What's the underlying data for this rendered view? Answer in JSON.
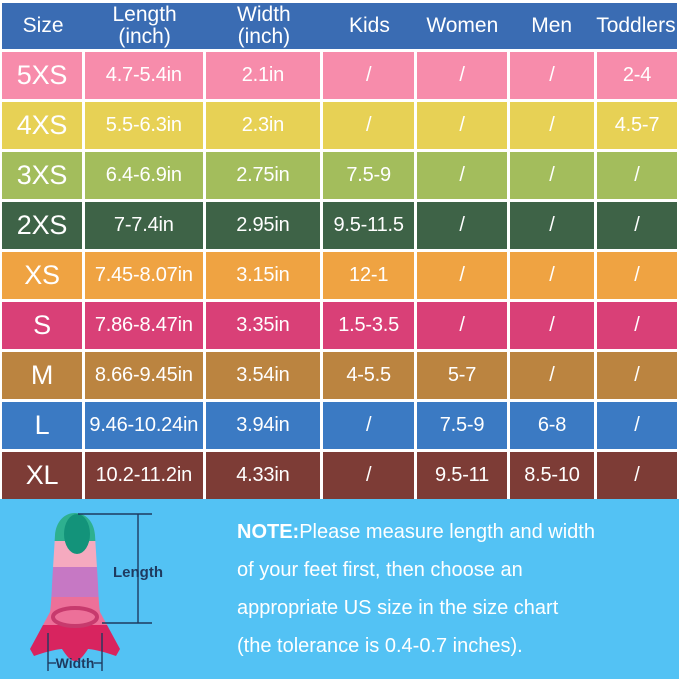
{
  "table": {
    "column_keys": [
      "size",
      "length",
      "width",
      "kids",
      "women",
      "men",
      "toddlers"
    ],
    "headers": [
      {
        "line1": "Size",
        "line2": ""
      },
      {
        "line1": "Length",
        "line2": "(inch)"
      },
      {
        "line1": "Width",
        "line2": "(inch)"
      },
      {
        "line1": "Kids",
        "line2": ""
      },
      {
        "line1": "Women",
        "line2": ""
      },
      {
        "line1": "Men",
        "line2": ""
      },
      {
        "line1": "Toddlers",
        "line2": ""
      }
    ],
    "rows": [
      {
        "size": "5XS",
        "length": "4.7-5.4in",
        "width": "2.1in",
        "kids": "/",
        "women": "/",
        "men": "/",
        "toddlers": "2-4",
        "color": "#f78cab"
      },
      {
        "size": "4XS",
        "length": "5.5-6.3in",
        "width": "2.3in",
        "kids": "/",
        "women": "/",
        "men": "/",
        "toddlers": "4.5-7",
        "color": "#e7d155"
      },
      {
        "size": "3XS",
        "length": "6.4-6.9in",
        "width": "2.75in",
        "kids": "7.5-9",
        "women": "/",
        "men": "/",
        "toddlers": "/",
        "color": "#a3bd5c"
      },
      {
        "size": "2XS",
        "length": "7-7.4in",
        "width": "2.95in",
        "kids": "9.5-11.5",
        "women": "/",
        "men": "/",
        "toddlers": "/",
        "color": "#3e6347"
      },
      {
        "size": "XS",
        "length": "7.45-8.07in",
        "width": "3.15in",
        "kids": "12-1",
        "women": "/",
        "men": "/",
        "toddlers": "/",
        "color": "#efa342"
      },
      {
        "size": "S",
        "length": "7.86-8.47in",
        "width": "3.35in",
        "kids": "1.5-3.5",
        "women": "/",
        "men": "/",
        "toddlers": "/",
        "color": "#d94077"
      },
      {
        "size": "M",
        "length": "8.66-9.45in",
        "width": "3.54in",
        "kids": "4-5.5",
        "women": "5-7",
        "men": "/",
        "toddlers": "/",
        "color": "#bb8440"
      },
      {
        "size": "L",
        "length": "9.46-10.24in",
        "width": "3.94in",
        "kids": "/",
        "women": "7.5-9",
        "men": "6-8",
        "toddlers": "/",
        "color": "#3b7ac3"
      },
      {
        "size": "XL",
        "length": "10.2-11.2in",
        "width": "4.33in",
        "kids": "/",
        "women": "9.5-11",
        "men": "8.5-10",
        "toddlers": "/",
        "color": "#7d3c36"
      }
    ],
    "colors": {
      "header_bg": "#3a6cb3",
      "grid": "#ffffff",
      "header_text": "#ffffff",
      "cell_text": "#ffffff"
    }
  },
  "note": {
    "prefix": "NOTE:",
    "lines": [
      "Please measure length and width",
      "of your feet first, then choose an",
      "appropriate US size in the size chart",
      "(the tolerance is 0.4-0.7 inches)."
    ],
    "text_color": "#ffffff",
    "background": "#53c2f4"
  },
  "diagram": {
    "length_label": "Length",
    "width_label": "Width",
    "annotation_color": "#1e3a5f",
    "fin_colors": {
      "tip_teal": "#2eb08f",
      "tip_dark_teal": "#13937a",
      "light_pink": "#f5aabf",
      "orchid": "#c678c4",
      "pocket_pink": "#ed7099",
      "ring_stroke": "#c73a6d",
      "blade_crimson": "#d8245f"
    }
  }
}
